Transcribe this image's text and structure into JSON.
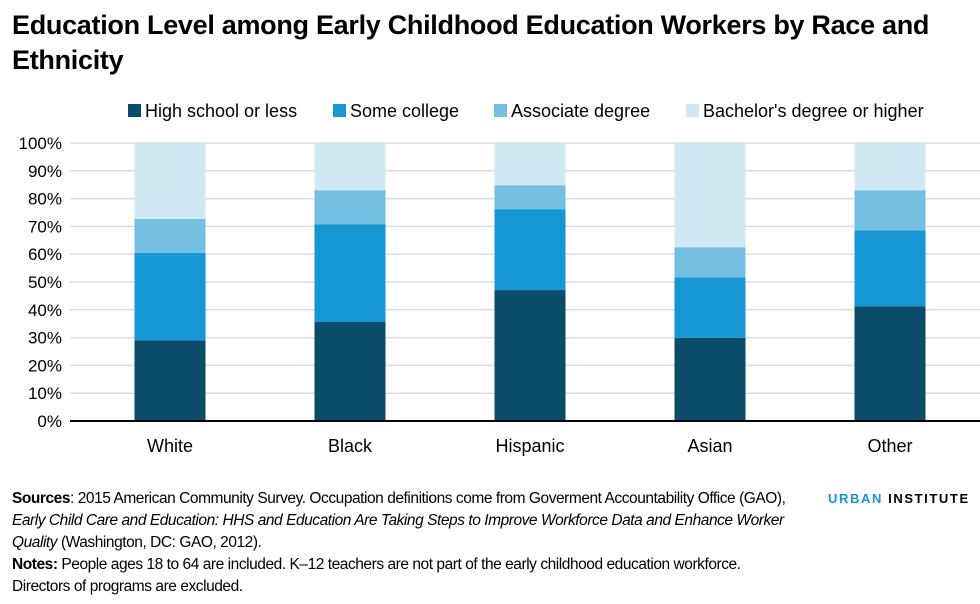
{
  "colors": {
    "high_school": "#0a4c6a",
    "some_college": "#1696d2",
    "associate": "#73bfe2",
    "bachelor": "#cfe8f3",
    "grid": "#dedddd",
    "axis": "#000000",
    "logo_accent": "#1696d2"
  },
  "chart_data": {
    "type": "bar",
    "stacked": true,
    "title": "Education Level among Early Childhood Education Workers by Race and Ethnicity",
    "xlabel": "",
    "ylabel": "",
    "ylim": [
      0,
      100
    ],
    "yticks": [
      "0%",
      "10%",
      "20%",
      "30%",
      "40%",
      "50%",
      "60%",
      "70%",
      "80%",
      "90%",
      "100%"
    ],
    "grid": true,
    "legend_position": "top",
    "categories": [
      "White",
      "Black",
      "Hispanic",
      "Asian",
      "Other"
    ],
    "series": [
      {
        "name": "High school or less",
        "color": "#0a4c6a",
        "values": [
          29.0,
          35.6,
          47.1,
          29.9,
          41.3
        ]
      },
      {
        "name": "Some college",
        "color": "#1696d2",
        "values": [
          31.5,
          35.2,
          29.1,
          21.8,
          27.3
        ]
      },
      {
        "name": "Associate degree",
        "color": "#73bfe2",
        "values": [
          12.2,
          12.2,
          8.6,
          10.8,
          14.4
        ]
      },
      {
        "name": "Bachelor's degree or higher",
        "color": "#cfe8f3",
        "values": [
          27.3,
          17.0,
          15.2,
          37.5,
          17.0
        ]
      }
    ]
  },
  "footer": {
    "sources_label": "Sources",
    "sources_text1": ": 2015 American Community Survey. Occupation definitions come from Goverment Accountability Office (GAO), ",
    "sources_italic": "Early Child Care and Education: HHS and Education Are Taking Steps to Improve Workforce Data and Enhance Worker Quality",
    "sources_text2": " (Washington, DC: GAO, 2012).",
    "notes_label": "Notes:",
    "notes_text": " People ages 18 to 64 are included. K–12 teachers are not part of the early childhood education workforce. Directors of programs are excluded."
  },
  "logo": {
    "part1": "URBAN",
    "part2": "INSTITUTE"
  }
}
